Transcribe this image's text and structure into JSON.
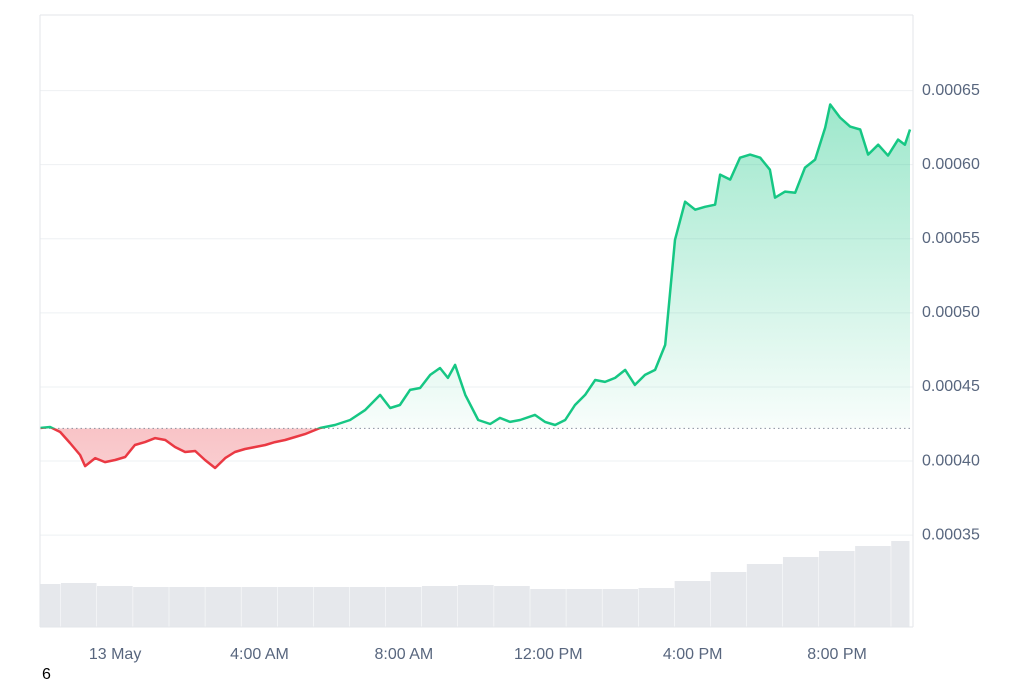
{
  "chart_data": {
    "type": "line",
    "x": [
      -2.08,
      -1.8,
      -1.52,
      -1.25,
      -0.97,
      -0.83,
      -0.55,
      -0.28,
      0,
      0.28,
      0.55,
      0.83,
      1.11,
      1.39,
      1.66,
      1.94,
      2.22,
      2.49,
      2.77,
      3.05,
      3.32,
      3.6,
      3.88,
      4.16,
      4.43,
      4.71,
      4.99,
      5.26,
      5.68,
      6.09,
      6.51,
      6.93,
      7.34,
      7.62,
      7.89,
      8.17,
      8.45,
      8.73,
      9.0,
      9.22,
      9.42,
      9.7,
      10.06,
      10.39,
      10.66,
      10.94,
      11.22,
      11.63,
      11.91,
      12.19,
      12.47,
      12.74,
      13.02,
      13.3,
      13.57,
      13.85,
      14.13,
      14.4,
      14.68,
      14.96,
      15.24,
      15.51,
      15.79,
      16.07,
      16.34,
      16.62,
      16.76,
      17.04,
      17.31,
      17.59,
      17.87,
      18.14,
      18.28,
      18.56,
      18.84,
      19.11,
      19.39,
      19.67,
      19.81,
      20.08,
      20.36,
      20.64,
      20.86,
      21.14,
      21.41,
      21.69,
      21.88,
      22.02
    ],
    "values": [
      0.0004223,
      0.000423,
      0.0004196,
      0.0004122,
      0.0004041,
      0.0003966,
      0.000402,
      0.0003993,
      0.0004007,
      0.0004027,
      0.0004108,
      0.0004128,
      0.0004155,
      0.0004142,
      0.0004095,
      0.0004061,
      0.0004068,
      0.0004007,
      0.0003953,
      0.000402,
      0.0004061,
      0.0004081,
      0.0004095,
      0.0004108,
      0.0004128,
      0.0004142,
      0.0004162,
      0.0004182,
      0.0004223,
      0.0004243,
      0.0004277,
      0.0004345,
      0.0004446,
      0.0004358,
      0.0004378,
      0.000448,
      0.0004493,
      0.0004581,
      0.0004628,
      0.0004561,
      0.0004649,
      0.0004446,
      0.0004277,
      0.000425,
      0.0004291,
      0.0004264,
      0.0004277,
      0.0004311,
      0.0004264,
      0.0004243,
      0.0004277,
      0.0004378,
      0.0004446,
      0.0004547,
      0.0004534,
      0.0004561,
      0.0004615,
      0.0004514,
      0.0004581,
      0.0004615,
      0.0004784,
      0.0005493,
      0.000575,
      0.0005696,
      0.0005716,
      0.000573,
      0.0005933,
      0.0005899,
      0.0006047,
      0.0006068,
      0.0006047,
      0.0005966,
      0.0005777,
      0.0005818,
      0.0005811,
      0.000598,
      0.0006034,
      0.000625,
      0.0006406,
      0.0006318,
      0.0006257,
      0.0006237,
      0.0006068,
      0.0006135,
      0.0006061,
      0.0006169,
      0.0006135,
      0.0006237
    ],
    "baseline": 0.000422,
    "up_color": "#16c784",
    "down_color": "#ea3943",
    "volume": {
      "x": [
        -2,
        -1,
        0,
        1,
        2,
        3,
        4,
        5,
        6,
        7,
        8,
        9,
        10,
        11,
        12,
        13,
        14,
        15,
        16,
        17,
        18,
        19,
        20,
        21,
        22
      ],
      "values": [
        43,
        44,
        41,
        40,
        40,
        40,
        40,
        40,
        40,
        40,
        40,
        41,
        42,
        41,
        38,
        38,
        38,
        39,
        46,
        55,
        63,
        70,
        76,
        81,
        86
      ],
      "color": "#e6e8ec"
    },
    "xlim": [
      -2.08,
      22.02
    ],
    "ylim": [
      0.000288,
      0.000701
    ],
    "xticks": [
      {
        "value": 0,
        "label": "13 May"
      },
      {
        "value": 4,
        "label": "4:00 AM"
      },
      {
        "value": 8,
        "label": "8:00 AM"
      },
      {
        "value": 12,
        "label": "12:00 PM"
      },
      {
        "value": 16,
        "label": "4:00 PM"
      },
      {
        "value": 20,
        "label": "8:00 PM"
      }
    ],
    "yticks": [
      0.00035,
      {
        "value": 0.0004,
        "label": "0.00040"
      },
      0.00045,
      {
        "value": 0.0005,
        "label": "0.00050"
      },
      0.00055,
      {
        "value": 0.0006,
        "label": "0.00060"
      },
      0.00065
    ],
    "grid": true,
    "footnote": "6"
  }
}
